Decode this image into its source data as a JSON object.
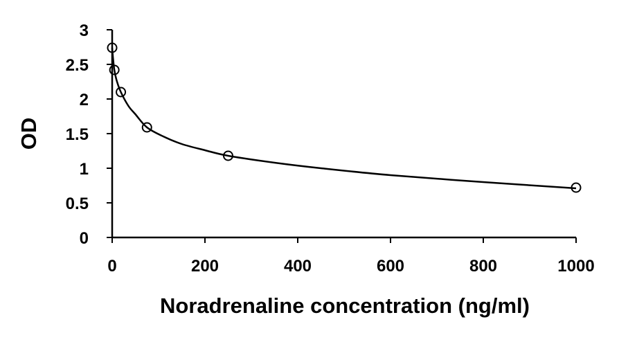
{
  "chart_data": {
    "type": "scatter",
    "title": "",
    "xlabel": "Noradrenaline concentration (ng/ml)",
    "ylabel": "OD",
    "xlim": [
      0,
      1000
    ],
    "ylim": [
      0,
      3
    ],
    "x_ticks": [
      0,
      200,
      400,
      600,
      800,
      1000
    ],
    "x_tick_labels": [
      "0",
      "200",
      "400",
      "600",
      "800",
      "1000"
    ],
    "y_ticks": [
      0,
      0.5,
      1,
      1.5,
      2,
      2.5,
      3
    ],
    "y_tick_labels": [
      "0",
      "0.5",
      "1",
      "1.5",
      "2",
      "2.5",
      "3"
    ],
    "grid": false,
    "legend": "none",
    "series": [
      {
        "marker": "open-circle",
        "x": [
          0,
          4.7,
          18.75,
          75,
          250,
          1000
        ],
        "y": [
          2.74,
          2.42,
          2.1,
          1.59,
          1.18,
          0.72
        ]
      }
    ],
    "fit_curve": {
      "type": "line",
      "x": [
        0,
        2,
        4.7,
        10,
        18.75,
        35,
        50,
        75,
        110,
        150,
        200,
        250,
        350,
        450,
        600,
        800,
        1000
      ],
      "y": [
        2.74,
        2.58,
        2.42,
        2.26,
        2.1,
        1.9,
        1.78,
        1.59,
        1.46,
        1.35,
        1.26,
        1.18,
        1.08,
        1.0,
        0.9,
        0.8,
        0.71
      ]
    },
    "colors": {
      "axis": "#000000",
      "marker_stroke": "#000000",
      "curve": "#000000"
    }
  }
}
